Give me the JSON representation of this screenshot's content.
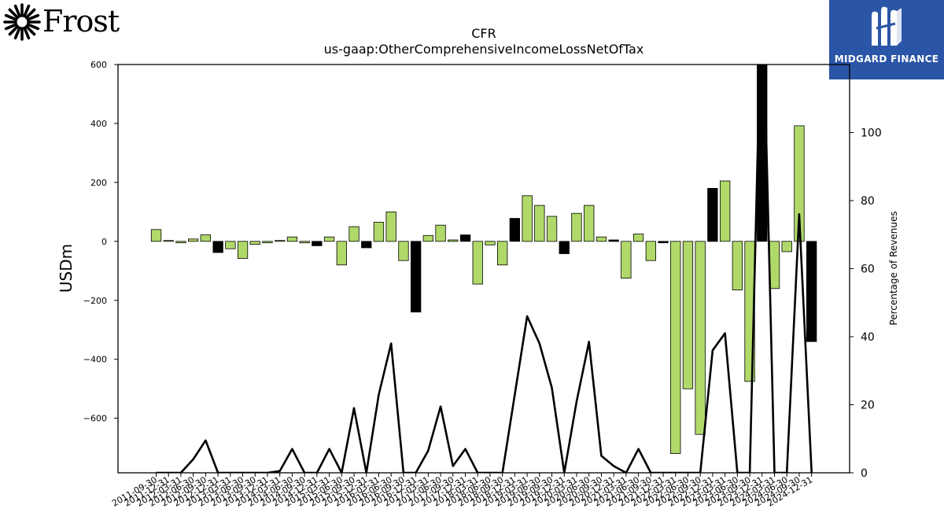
{
  "logos": {
    "left": {
      "text": "Frost"
    },
    "right": {
      "text": "MIDGARD FINANCE"
    }
  },
  "colors": {
    "positive_bar": "#b0d96a",
    "highlight_bar": "#000000",
    "line": "#000000",
    "brand_blue": "#2b55a6"
  },
  "chart_data": {
    "type": "bar",
    "title": "CFR",
    "subtitle": "us-gaap:OtherComprehensiveIncomeLossNetOfTax",
    "ylabel": "USDm",
    "y2label": "Percentage of Revenues",
    "ylim": [
      -785,
      600
    ],
    "y2lim": [
      0,
      120
    ],
    "yticks": [
      -600,
      -400,
      -200,
      0,
      200,
      400,
      600
    ],
    "yticklabels": [
      "−600",
      "−400",
      "−200",
      "0",
      "200",
      "400",
      "600"
    ],
    "y2ticks": [
      0,
      20,
      40,
      60,
      80,
      100
    ],
    "categories": [
      "2011-09-30",
      "2011-12-31",
      "2012-03-31",
      "2012-06-30",
      "2012-09-30",
      "2012-12-31",
      "2013-03-31",
      "2013-06-30",
      "2013-09-30",
      "2013-12-31",
      "2014-03-31",
      "2014-06-30",
      "2014-09-30",
      "2014-12-31",
      "2015-03-31",
      "2015-06-30",
      "2015-09-30",
      "2015-12-31",
      "2016-03-31",
      "2016-06-30",
      "2016-09-30",
      "2016-12-31",
      "2017-03-31",
      "2017-06-30",
      "2017-09-30",
      "2017-12-31",
      "2018-03-31",
      "2018-06-30",
      "2018-09-30",
      "2018-12-31",
      "2019-03-31",
      "2019-06-30",
      "2019-09-30",
      "2019-12-31",
      "2020-03-31",
      "2020-06-30",
      "2020-09-30",
      "2020-12-31",
      "2021-03-31",
      "2021-06-30",
      "2021-09-30",
      "2021-12-31",
      "2022-03-31",
      "2022-06-30",
      "2022-09-30",
      "2022-12-31",
      "2023-03-31",
      "2023-06-30",
      "2023-09-30",
      "2023-12-31",
      "2024-03-31",
      "2024-06-30",
      "2024-09-30",
      "2024-12-31"
    ],
    "series": [
      {
        "type": "bar",
        "values": [
          40,
          3,
          -5,
          8,
          22,
          -38,
          -25,
          -58,
          -10,
          -5,
          3,
          15,
          -5,
          -15,
          15,
          -80,
          50,
          -22,
          65,
          100,
          -65,
          -240,
          20,
          55,
          5,
          22,
          -145,
          -12,
          -80,
          78,
          155,
          122,
          85,
          -42,
          95,
          122,
          15,
          5,
          -125,
          25,
          -65,
          -5,
          -720,
          -500,
          -655,
          180,
          205,
          -165,
          -475,
          640,
          -160,
          -35,
          392,
          -340
        ],
        "highlight": [
          false,
          false,
          false,
          false,
          false,
          true,
          false,
          false,
          false,
          false,
          false,
          false,
          false,
          true,
          false,
          false,
          false,
          true,
          false,
          false,
          false,
          true,
          false,
          false,
          false,
          true,
          false,
          false,
          false,
          true,
          false,
          false,
          false,
          true,
          false,
          false,
          false,
          true,
          false,
          false,
          false,
          true,
          false,
          false,
          false,
          true,
          false,
          false,
          false,
          true,
          false,
          false,
          false,
          true
        ]
      },
      {
        "type": "line",
        "axis": "right",
        "values": [
          0,
          0,
          0,
          4,
          9.5,
          0,
          0,
          0,
          0,
          0,
          0.5,
          7,
          0,
          0,
          7,
          0,
          19,
          0,
          23,
          38,
          0,
          0,
          6.5,
          19.5,
          2,
          7,
          0,
          0,
          0,
          23,
          46,
          38,
          25,
          0,
          21,
          38.5,
          5,
          2,
          0,
          7,
          0,
          0,
          0,
          0,
          0,
          36,
          41,
          0,
          0,
          148,
          0,
          0,
          76,
          0
        ]
      }
    ]
  }
}
